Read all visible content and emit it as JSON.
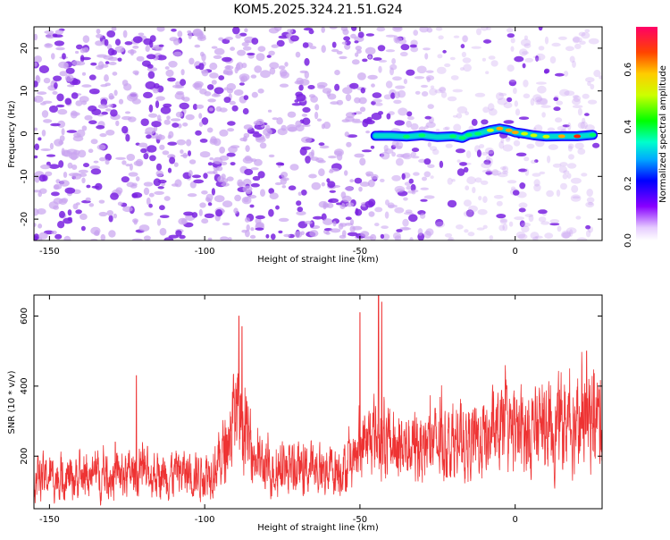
{
  "title": "KOM5.2025.324.21.51.G24",
  "colors": {
    "trace": "#ee3333",
    "blob_light": "#c9a4f0",
    "blob_dark": "#7a22e0"
  },
  "chart_data": [
    {
      "type": "heatmap",
      "title": "KOM5.2025.324.21.51.G24",
      "xlabel": "Height of straight line (km)",
      "ylabel": "Frequency (Hz)",
      "xlim": [
        -155,
        28
      ],
      "ylim": [
        -25,
        25
      ],
      "xticks": [
        -150,
        -100,
        -50,
        0
      ],
      "yticks": [
        -20,
        -10,
        0,
        10,
        20
      ],
      "colorbar": {
        "label": "Normalized spectral amplitude",
        "range": [
          0.0,
          0.75
        ],
        "ticks": [
          0.0,
          0.2,
          0.4,
          0.6
        ]
      },
      "ridge": {
        "x": [
          -45,
          -40,
          -35,
          -30,
          -25,
          -20,
          -17,
          -15,
          -12,
          -8,
          -5,
          -2,
          0,
          3,
          6,
          10,
          15,
          20,
          25
        ],
        "freq": [
          -0.5,
          -0.5,
          -0.7,
          -0.4,
          -0.8,
          -0.6,
          -1.0,
          -0.3,
          0.0,
          0.8,
          1.2,
          0.8,
          0.3,
          0.0,
          -0.4,
          -0.7,
          -0.6,
          -0.6,
          -0.3
        ],
        "amplitude": [
          0.15,
          0.25,
          0.3,
          0.3,
          0.28,
          0.35,
          0.3,
          0.3,
          0.35,
          0.45,
          0.55,
          0.6,
          0.55,
          0.5,
          0.45,
          0.5,
          0.65,
          0.75,
          0.3
        ]
      }
    },
    {
      "type": "line",
      "xlabel": "Height of straight line (km)",
      "ylabel": "SNR (10 * v/v)",
      "xlim": [
        -155,
        28
      ],
      "ylim": [
        50,
        660
      ],
      "xticks": [
        -150,
        -100,
        -50,
        0
      ],
      "yticks": [
        200,
        400,
        600
      ],
      "trend": {
        "x": [
          -155,
          -140,
          -120,
          -100,
          -95,
          -92,
          -90,
          -88,
          -85,
          -80,
          -70,
          -60,
          -52,
          -50,
          -47,
          -45,
          -44,
          -42,
          -35,
          -25,
          -15,
          -5,
          5,
          15,
          28
        ],
        "y": [
          140,
          140,
          150,
          150,
          190,
          260,
          330,
          290,
          210,
          160,
          160,
          165,
          170,
          220,
          240,
          260,
          250,
          230,
          230,
          235,
          240,
          260,
          270,
          290,
          310
        ]
      },
      "peaks": {
        "x": [
          -122,
          -89,
          -88,
          -50,
          -44,
          -43,
          23
        ],
        "y": [
          430,
          600,
          570,
          610,
          660,
          640,
          500
        ]
      }
    }
  ]
}
